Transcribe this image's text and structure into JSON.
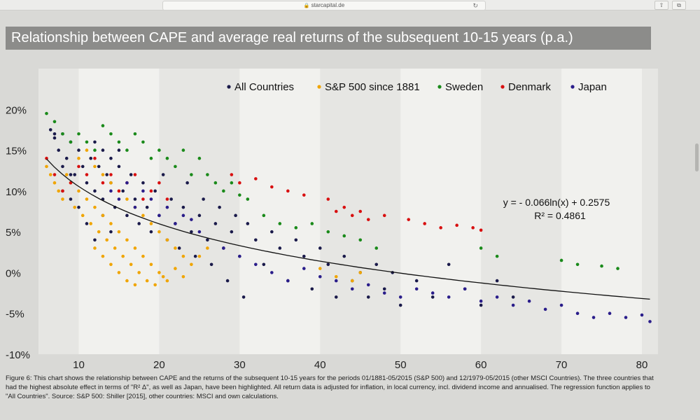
{
  "browser": {
    "url": "starcapital.de",
    "lock_icon": "lock-icon",
    "reload_icon": "reload-icon",
    "share_icon": "share-icon",
    "tabs_icon": "tabs-icon"
  },
  "chart_data": {
    "type": "scatter",
    "title": "Relationship between CAPE and average real returns of the subsequent 10-15 years (p.a.)",
    "xlabel": "",
    "ylabel": "",
    "xlim": [
      5,
      82
    ],
    "ylim": [
      -10,
      25
    ],
    "x_ticks": [
      10,
      20,
      30,
      40,
      50,
      60,
      70,
      80
    ],
    "y_ticks": [
      -10,
      -5,
      0,
      5,
      10,
      15,
      20
    ],
    "y_tick_labels": [
      "-10%",
      "-5%",
      "0%",
      "5%",
      "10%",
      "15%",
      "20%"
    ],
    "legend_position": "top-right",
    "series": [
      {
        "name": "All Countries",
        "color": "#1a1a4a",
        "points": [
          [
            7,
            16.5
          ],
          [
            7.5,
            15
          ],
          [
            8,
            17
          ],
          [
            8.5,
            14
          ],
          [
            9,
            16
          ],
          [
            9.5,
            12
          ],
          [
            10,
            15
          ],
          [
            10.5,
            13
          ],
          [
            11,
            11
          ],
          [
            11.5,
            14
          ],
          [
            12,
            10
          ],
          [
            12.5,
            13
          ],
          [
            13,
            9
          ],
          [
            13.5,
            12
          ],
          [
            14,
            11
          ],
          [
            14.5,
            8
          ],
          [
            15,
            13
          ],
          [
            15.5,
            10
          ],
          [
            16,
            7
          ],
          [
            16.5,
            12
          ],
          [
            17,
            9
          ],
          [
            17.5,
            6
          ],
          [
            18,
            11
          ],
          [
            18.5,
            8
          ],
          [
            19,
            5
          ],
          [
            19.5,
            10
          ],
          [
            20,
            7
          ],
          [
            20.5,
            12
          ],
          [
            21,
            4
          ],
          [
            21.5,
            9
          ],
          [
            22,
            6
          ],
          [
            22.5,
            3
          ],
          [
            23,
            8
          ],
          [
            23.5,
            11
          ],
          [
            24,
            5
          ],
          [
            24.5,
            2
          ],
          [
            25,
            7
          ],
          [
            25.5,
            9
          ],
          [
            26,
            4
          ],
          [
            26.5,
            1
          ],
          [
            27,
            6
          ],
          [
            27.5,
            8
          ],
          [
            28,
            3
          ],
          [
            28.5,
            -1
          ],
          [
            29,
            5
          ],
          [
            29.5,
            7
          ],
          [
            30,
            2
          ],
          [
            30.5,
            -3
          ],
          [
            31,
            6
          ],
          [
            32,
            4
          ],
          [
            33,
            1
          ],
          [
            34,
            5
          ],
          [
            35,
            3
          ],
          [
            36,
            -1
          ],
          [
            37,
            4
          ],
          [
            38,
            2
          ],
          [
            39,
            -2
          ],
          [
            40,
            3
          ],
          [
            41,
            1
          ],
          [
            42,
            -3
          ],
          [
            43,
            2
          ],
          [
            44,
            -1
          ],
          [
            45,
            0
          ],
          [
            46,
            -3
          ],
          [
            47,
            1
          ],
          [
            48,
            -2
          ],
          [
            49,
            0
          ],
          [
            50,
            -4
          ],
          [
            52,
            -1
          ],
          [
            54,
            -3
          ],
          [
            56,
            1
          ],
          [
            58,
            -2
          ],
          [
            60,
            -4
          ],
          [
            62,
            -1
          ],
          [
            64,
            -3
          ],
          [
            10,
            8
          ],
          [
            11,
            6
          ],
          [
            12,
            4
          ],
          [
            13,
            7
          ],
          [
            14,
            5
          ],
          [
            9,
            12
          ],
          [
            8,
            13
          ],
          [
            8,
            10
          ],
          [
            9,
            9
          ],
          [
            6.5,
            17.5
          ],
          [
            7,
            17
          ],
          [
            12,
            16
          ],
          [
            13,
            15
          ],
          [
            14,
            14
          ],
          [
            15,
            15
          ]
        ]
      },
      {
        "name": "S&P 500 since 1881",
        "color": "#f0a500",
        "points": [
          [
            6,
            13
          ],
          [
            6.5,
            12
          ],
          [
            7,
            11
          ],
          [
            7.5,
            10
          ],
          [
            8,
            9
          ],
          [
            8.5,
            12
          ],
          [
            9,
            11
          ],
          [
            9.5,
            8
          ],
          [
            10,
            10
          ],
          [
            10.5,
            7
          ],
          [
            11,
            9
          ],
          [
            11.5,
            6
          ],
          [
            12,
            8
          ],
          [
            12.5,
            5
          ],
          [
            13,
            7
          ],
          [
            13.5,
            4
          ],
          [
            14,
            6
          ],
          [
            14.5,
            3
          ],
          [
            15,
            5
          ],
          [
            15.5,
            2
          ],
          [
            16,
            4
          ],
          [
            16.5,
            1
          ],
          [
            17,
            3
          ],
          [
            17.5,
            0
          ],
          [
            18,
            2
          ],
          [
            18.5,
            -1
          ],
          [
            19,
            1
          ],
          [
            19.5,
            -1.5
          ],
          [
            20,
            0
          ],
          [
            20.5,
            -0.5
          ],
          [
            21,
            -1
          ],
          [
            22,
            0.5
          ],
          [
            23,
            -0.5
          ],
          [
            24,
            1
          ],
          [
            25,
            2
          ],
          [
            26,
            3
          ],
          [
            10,
            14
          ],
          [
            11,
            15
          ],
          [
            12,
            13
          ],
          [
            13,
            12
          ],
          [
            14,
            11
          ],
          [
            15,
            10
          ],
          [
            16,
            9
          ],
          [
            17,
            8
          ],
          [
            18,
            7
          ],
          [
            19,
            6
          ],
          [
            20,
            5
          ],
          [
            21,
            4
          ],
          [
            22,
            3
          ],
          [
            23,
            2
          ],
          [
            12,
            3
          ],
          [
            13,
            2
          ],
          [
            14,
            1
          ],
          [
            15,
            0
          ],
          [
            16,
            -1
          ],
          [
            17,
            -1.5
          ],
          [
            40,
            0.5
          ],
          [
            42,
            -0.5
          ],
          [
            44,
            -1
          ],
          [
            45,
            0
          ]
        ]
      },
      {
        "name": "Sweden",
        "color": "#1a8a1a",
        "points": [
          [
            6,
            19.5
          ],
          [
            7,
            18.5
          ],
          [
            8,
            17
          ],
          [
            9,
            16
          ],
          [
            10,
            17
          ],
          [
            11,
            16
          ],
          [
            12,
            15
          ],
          [
            13,
            18
          ],
          [
            14,
            17
          ],
          [
            15,
            16
          ],
          [
            16,
            15
          ],
          [
            17,
            17
          ],
          [
            18,
            16
          ],
          [
            19,
            14
          ],
          [
            20,
            15
          ],
          [
            21,
            14
          ],
          [
            22,
            13
          ],
          [
            23,
            15
          ],
          [
            24,
            12
          ],
          [
            25,
            14
          ],
          [
            26,
            12
          ],
          [
            27,
            11
          ],
          [
            28,
            10
          ],
          [
            29,
            11
          ],
          [
            30,
            9.5
          ],
          [
            31,
            9
          ],
          [
            33,
            7
          ],
          [
            35,
            6
          ],
          [
            37,
            5.5
          ],
          [
            39,
            6
          ],
          [
            41,
            5
          ],
          [
            43,
            4.5
          ],
          [
            45,
            4
          ],
          [
            47,
            3
          ],
          [
            60,
            3
          ],
          [
            62,
            2
          ],
          [
            70,
            1.5
          ],
          [
            72,
            1
          ],
          [
            75,
            0.8
          ],
          [
            77,
            0.5
          ]
        ]
      },
      {
        "name": "Denmark",
        "color": "#d81010",
        "points": [
          [
            6,
            14
          ],
          [
            7,
            12
          ],
          [
            8,
            10
          ],
          [
            9,
            11
          ],
          [
            10,
            13
          ],
          [
            11,
            12
          ],
          [
            12,
            14
          ],
          [
            13,
            11
          ],
          [
            14,
            12
          ],
          [
            15,
            10
          ],
          [
            16,
            11
          ],
          [
            17,
            12
          ],
          [
            18,
            9
          ],
          [
            19,
            10
          ],
          [
            20,
            11
          ],
          [
            21,
            9
          ],
          [
            29,
            12
          ],
          [
            30,
            11
          ],
          [
            32,
            11.5
          ],
          [
            34,
            10.5
          ],
          [
            36,
            10
          ],
          [
            38,
            9.5
          ],
          [
            41,
            9
          ],
          [
            42,
            7.5
          ],
          [
            43,
            8
          ],
          [
            44,
            7
          ],
          [
            45,
            7.5
          ],
          [
            46,
            6.5
          ],
          [
            48,
            7
          ],
          [
            51,
            6.5
          ],
          [
            53,
            6
          ],
          [
            55,
            5.5
          ],
          [
            57,
            5.8
          ],
          [
            59,
            5.5
          ],
          [
            60,
            5.2
          ]
        ]
      },
      {
        "name": "Japan",
        "color": "#2a1d8a",
        "points": [
          [
            14,
            10
          ],
          [
            15,
            9
          ],
          [
            16,
            11
          ],
          [
            17,
            8
          ],
          [
            18,
            10
          ],
          [
            19,
            9
          ],
          [
            20,
            7
          ],
          [
            21,
            8
          ],
          [
            22,
            6
          ],
          [
            23,
            7
          ],
          [
            24,
            6.5
          ],
          [
            25,
            5
          ],
          [
            28,
            3
          ],
          [
            30,
            2
          ],
          [
            32,
            1
          ],
          [
            34,
            0
          ],
          [
            36,
            -1
          ],
          [
            38,
            0.5
          ],
          [
            40,
            -0.5
          ],
          [
            42,
            -1
          ],
          [
            44,
            -2
          ],
          [
            46,
            -1.5
          ],
          [
            48,
            -2.5
          ],
          [
            50,
            -3
          ],
          [
            52,
            -2
          ],
          [
            54,
            -2.5
          ],
          [
            56,
            -3
          ],
          [
            58,
            -2
          ],
          [
            60,
            -3.5
          ],
          [
            62,
            -3
          ],
          [
            64,
            -4
          ],
          [
            66,
            -3.5
          ],
          [
            68,
            -4.5
          ],
          [
            70,
            -4
          ],
          [
            72,
            -5
          ],
          [
            74,
            -5.5
          ],
          [
            76,
            -5
          ],
          [
            78,
            -5.5
          ],
          [
            80,
            -5.2
          ],
          [
            81,
            -6
          ]
        ]
      }
    ],
    "regression": {
      "series": "All Countries",
      "equation_label": "y = - 0.066ln(x) + 0.2575",
      "r2_label": "R² = 0.4861",
      "a": -0.066,
      "b": 0.2575,
      "x_range": [
        6,
        81
      ]
    }
  },
  "caption": "Figure 6: This chart shows the relationship between CAPE and the returns of the subsequent 10-15 years for the periods 01/1881-05/2015 (S&P 500) and 12/1979-05/2015 (other MSCI Countries). The three countries that had the highest absolute effect in terms of \"R² Δ\", as well as Japan, have been highlighted. All return data is adjusted for inflation, in local currency, incl. dividend income and annualised. The regression function applies to \"All Countries\". Source: S&P 500: Shiller [2015], other countries: MSCI and own calculations."
}
